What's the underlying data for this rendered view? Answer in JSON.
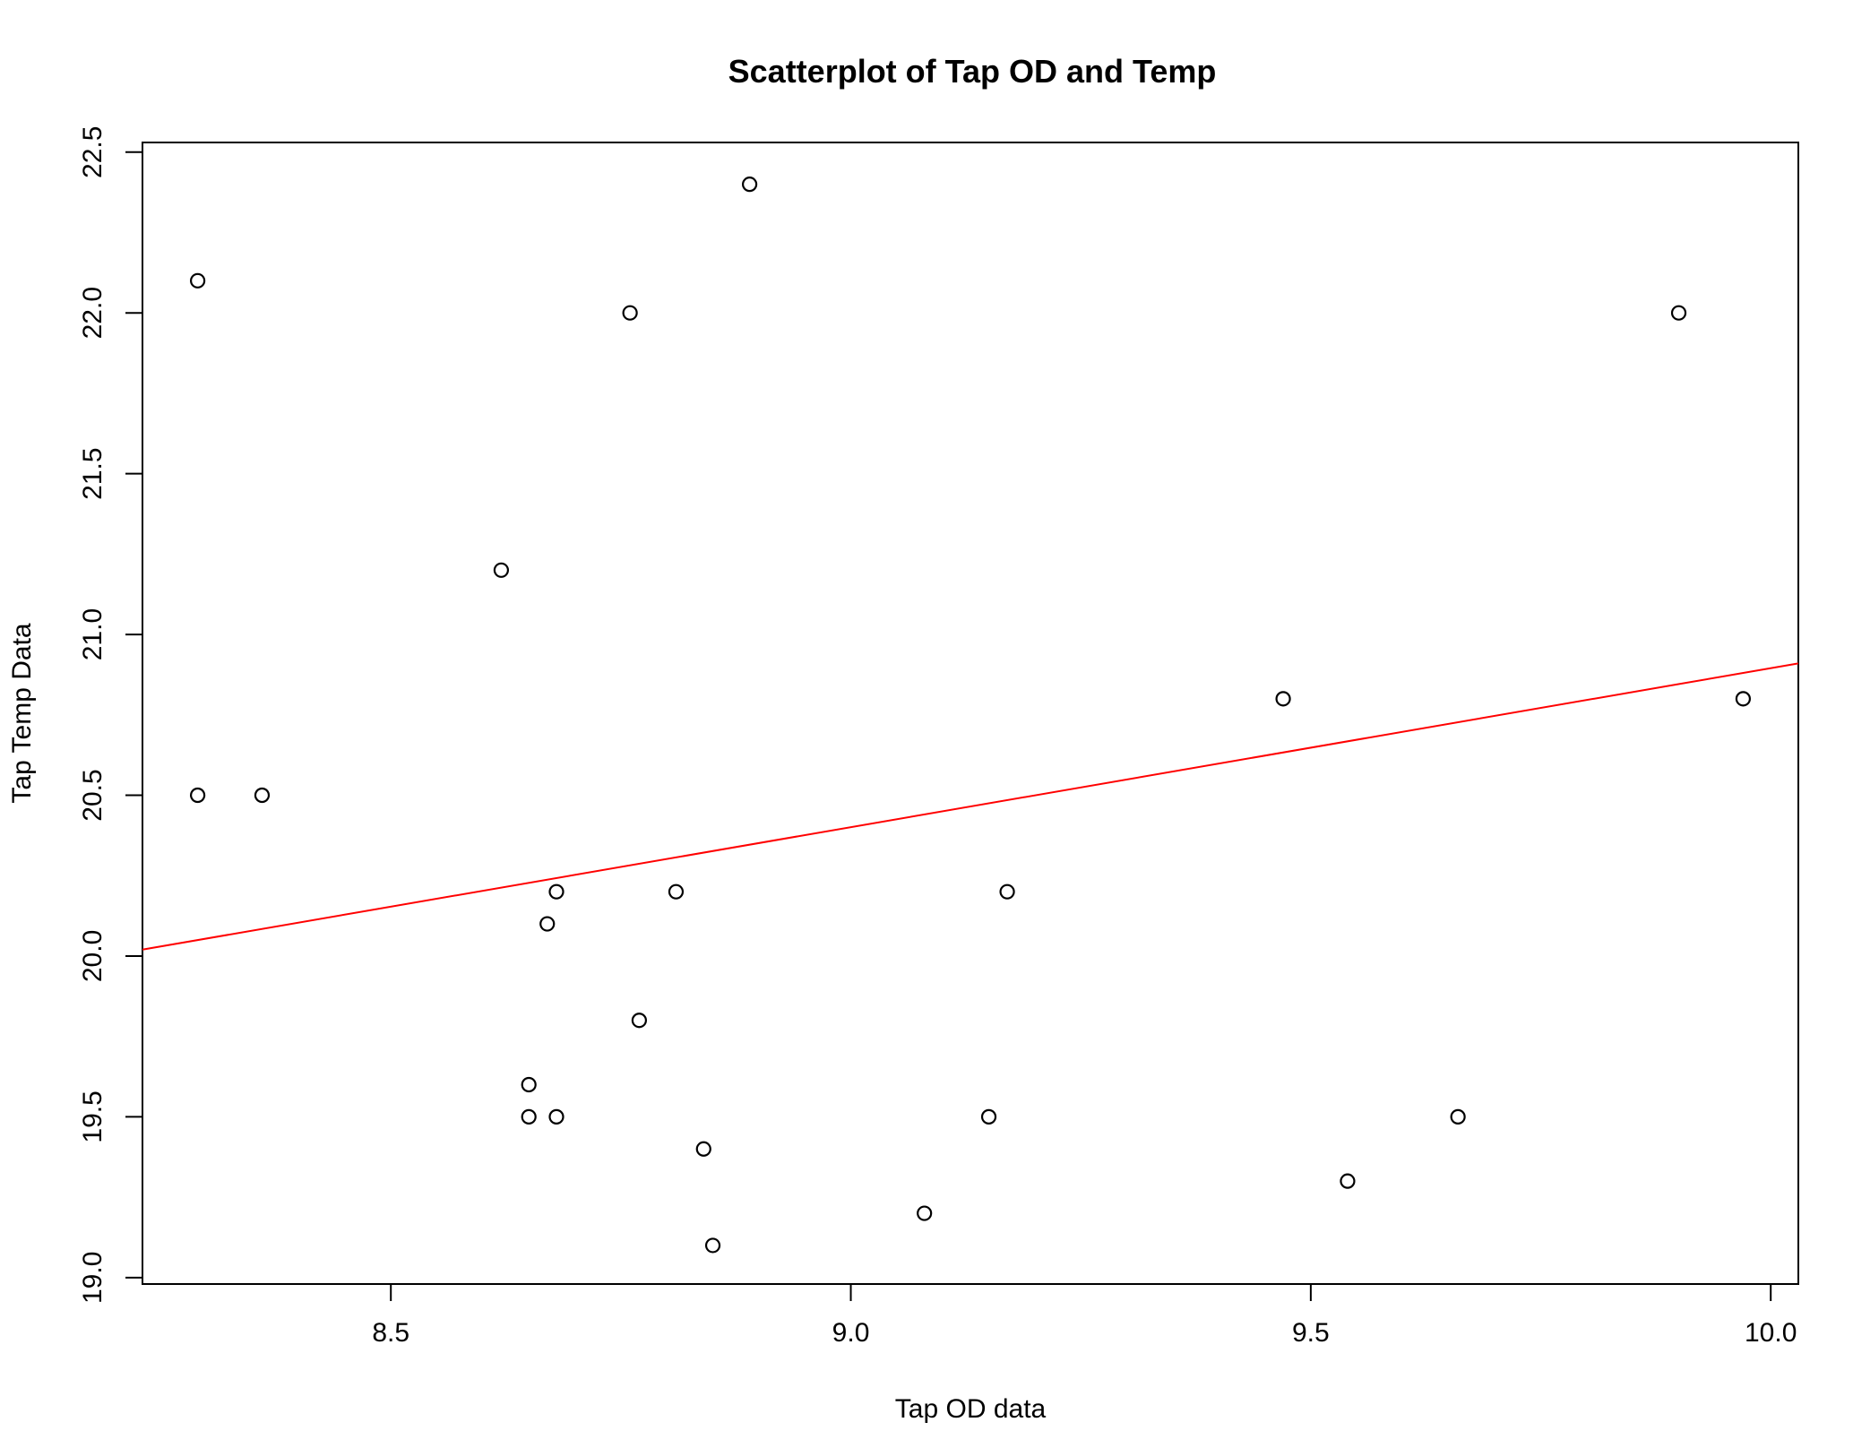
{
  "chart_data": {
    "type": "scatter",
    "title": "Scatterplot of Tap OD and Temp",
    "xlabel": "Tap OD data",
    "ylabel": "Tap Temp Data",
    "xlim": [
      8.23,
      10.03
    ],
    "ylim": [
      18.98,
      22.53
    ],
    "xticks": [
      "8.5",
      "9.0",
      "9.5",
      "10.0"
    ],
    "yticks": [
      "19.0",
      "19.5",
      "20.0",
      "20.5",
      "21.0",
      "21.5",
      "22.0",
      "22.5"
    ],
    "grid": false,
    "legend": "none",
    "x": [
      8.29,
      8.29,
      8.36,
      8.62,
      8.65,
      8.65,
      8.67,
      8.68,
      8.68,
      8.76,
      8.77,
      8.81,
      8.84,
      8.85,
      8.89,
      9.08,
      9.15,
      9.17,
      9.47,
      9.54,
      9.66,
      9.9,
      9.97
    ],
    "y": [
      22.1,
      20.5,
      20.5,
      21.2,
      19.6,
      19.5,
      20.1,
      20.2,
      19.5,
      22.0,
      19.8,
      20.2,
      19.4,
      19.1,
      22.4,
      19.2,
      19.5,
      20.2,
      20.8,
      19.3,
      19.5,
      22.0,
      20.8
    ],
    "regression_line": {
      "color": "#ff0000",
      "points": [
        [
          8.23,
          20.02
        ],
        [
          10.03,
          20.91
        ]
      ]
    },
    "point_color": "#000000"
  }
}
